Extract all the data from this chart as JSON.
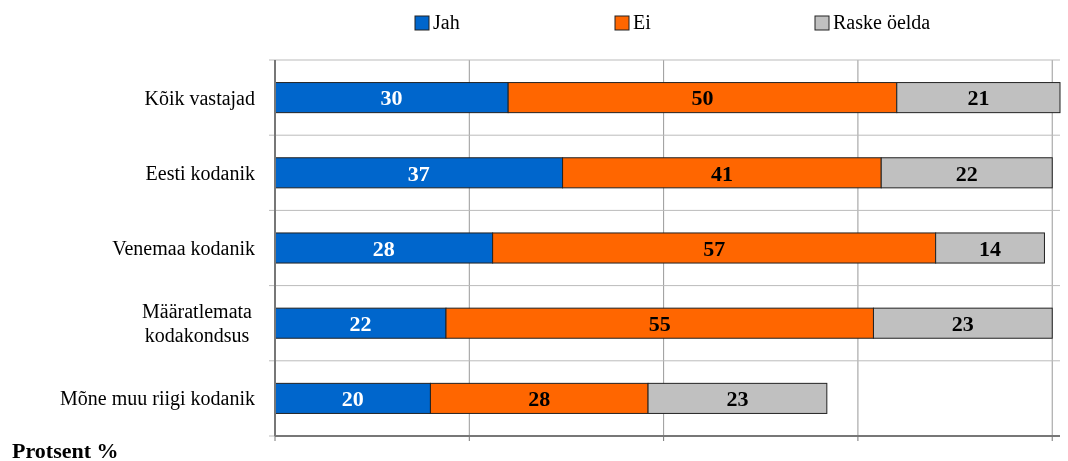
{
  "chart_data": {
    "type": "bar",
    "orientation": "horizontal",
    "stacked": true,
    "xlabel": "Protsent %",
    "categories": [
      "Kõik vastajad",
      "Eesti kodanik",
      "Venemaa kodanik",
      "Määratlemata kodakondsus",
      "Mõne muu riigi kodanik"
    ],
    "series": [
      {
        "name": "Jah",
        "color": "#0066cc",
        "values": [
          30,
          37,
          28,
          22,
          20
        ]
      },
      {
        "name": "Ei",
        "color": "#ff6600",
        "values": [
          50,
          41,
          57,
          55,
          28
        ]
      },
      {
        "name": "Raske öelda",
        "color": "#c0c0c0",
        "values": [
          21,
          22,
          14,
          23,
          23
        ]
      }
    ],
    "xlim": [
      0,
      101
    ],
    "xticks": [
      {
        "value": 0,
        "label": null
      },
      {
        "value": 25,
        "label": null
      },
      {
        "value": 50,
        "label": null
      },
      {
        "value": 75,
        "label": null
      },
      {
        "value": 100,
        "label": null
      }
    ],
    "tick_labels": "y",
    "grid": true,
    "legend": "top",
    "data_labels": true
  }
}
